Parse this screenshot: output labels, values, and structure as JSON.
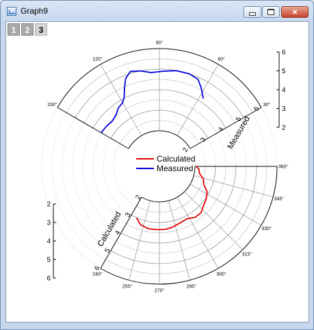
{
  "window": {
    "title": "Graph9",
    "buttons": {
      "minimize": "minimize",
      "maximize": "maximize",
      "close": "×"
    }
  },
  "layers": [
    {
      "label": "1",
      "active": false
    },
    {
      "label": "2",
      "active": false
    },
    {
      "label": "3",
      "active": true
    }
  ],
  "colors": {
    "calculated": "#e00000",
    "measured": "#0000e0",
    "grid": "#9a9a9a"
  },
  "chart_data": {
    "type": "line",
    "coordinate_system": "polar",
    "radial_axis": {
      "range": [
        2,
        6
      ],
      "ticks": [
        "2",
        "3",
        "4",
        "5",
        "6"
      ],
      "grid": true
    },
    "upper_sector": {
      "angle_range_deg": [
        30,
        150
      ],
      "angle_ticks": [
        "30°",
        "60°",
        "90°",
        "120°",
        "150°"
      ],
      "axis_title": "Measured",
      "radial_tick_labels_on_axis": [
        "2",
        "3",
        "4",
        "5",
        "6"
      ],
      "scale_labels": [
        "6",
        "5",
        "4",
        "3",
        "2"
      ]
    },
    "lower_sector": {
      "angle_range_deg": [
        240,
        360
      ],
      "angle_ticks": [
        "240°",
        "255°",
        "270°",
        "285°",
        "300°",
        "315°",
        "330°",
        "345°",
        "360°"
      ],
      "axis_title": "Calculated",
      "radial_tick_labels_on_axis": [
        "2",
        "3",
        "4",
        "5",
        "6"
      ],
      "scale_labels": [
        "2",
        "3",
        "4",
        "5",
        "6"
      ]
    },
    "legend": {
      "placement": "center",
      "entries": [
        "Calculated",
        "Measured"
      ]
    },
    "series": [
      {
        "name": "Measured",
        "color": "#0000e0",
        "points": [
          {
            "theta": 57,
            "r": 4.2
          },
          {
            "theta": 62,
            "r": 4.6
          },
          {
            "theta": 66,
            "r": 4.9
          },
          {
            "theta": 72,
            "r": 5.0
          },
          {
            "theta": 80,
            "r": 5.0
          },
          {
            "theta": 88,
            "r": 4.9
          },
          {
            "theta": 95,
            "r": 4.85
          },
          {
            "theta": 101,
            "r": 5.0
          },
          {
            "theta": 107,
            "r": 5.1
          },
          {
            "theta": 111,
            "r": 4.85
          },
          {
            "theta": 114,
            "r": 4.45
          },
          {
            "theta": 117,
            "r": 4.05
          },
          {
            "theta": 120,
            "r": 3.85
          },
          {
            "theta": 125,
            "r": 3.75
          },
          {
            "theta": 130,
            "r": 3.55
          },
          {
            "theta": 136,
            "r": 3.45
          },
          {
            "theta": 143,
            "r": 3.5
          },
          {
            "theta": 150,
            "r": 3.55
          }
        ]
      },
      {
        "name": "Calculated",
        "color": "#e00000",
        "points": [
          {
            "theta": 246,
            "r": 3.0
          },
          {
            "theta": 252,
            "r": 3.25
          },
          {
            "theta": 260,
            "r": 3.35
          },
          {
            "theta": 268,
            "r": 3.35
          },
          {
            "theta": 275,
            "r": 3.35
          },
          {
            "theta": 282,
            "r": 3.3
          },
          {
            "theta": 290,
            "r": 3.2
          },
          {
            "theta": 298,
            "r": 3.15
          },
          {
            "theta": 305,
            "r": 3.3
          },
          {
            "theta": 312,
            "r": 3.3
          },
          {
            "theta": 318,
            "r": 3.15
          },
          {
            "theta": 325,
            "r": 3.05
          },
          {
            "theta": 332,
            "r": 2.9
          },
          {
            "theta": 338,
            "r": 2.6
          },
          {
            "theta": 344,
            "r": 2.5
          },
          {
            "theta": 350,
            "r": 2.25
          },
          {
            "theta": 356,
            "r": 2.2
          },
          {
            "theta": 360,
            "r": 2.05
          }
        ]
      }
    ]
  }
}
